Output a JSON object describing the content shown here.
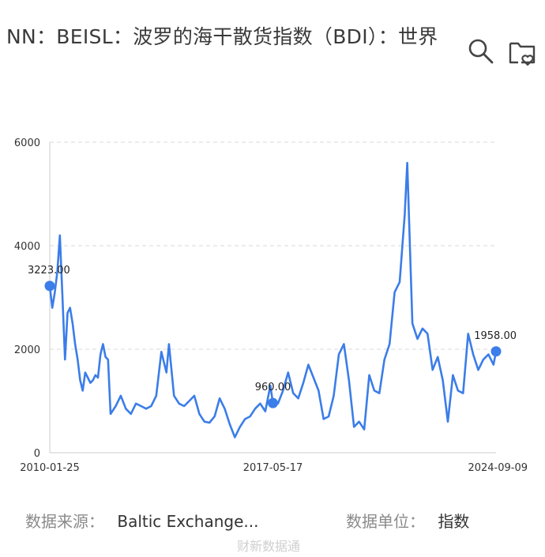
{
  "header": {
    "title": "NN：BEISL：波罗的海干散货指数（BDI）：世界"
  },
  "icons": {
    "search": "search-icon",
    "favorite": "folder-heart-icon"
  },
  "colors": {
    "series": "#3b7de9",
    "grid": "#d8d8d8",
    "axis": "#cccccc"
  },
  "chart_data": {
    "type": "line",
    "title": "",
    "xlabel": "",
    "ylabel": "",
    "ylim": [
      0,
      6000
    ],
    "yticks": [
      "0",
      "2000",
      "4000",
      "6000"
    ],
    "xticks": [
      "2010-01-25",
      "2017-05-17",
      "2024-09-09"
    ],
    "grid": true,
    "series": [
      {
        "x": [
          "2010-01",
          "2010-02",
          "2010-03",
          "2010-04",
          "2010-05",
          "2010-06",
          "2010-07",
          "2010-08",
          "2010-09",
          "2010-10",
          "2010-11",
          "2010-12",
          "2011-01",
          "2011-02",
          "2011-03",
          "2011-04",
          "2011-05",
          "2011-06",
          "2011-07",
          "2011-08",
          "2011-09",
          "2011-10",
          "2011-11",
          "2011-12",
          "2012-01",
          "2012-03",
          "2012-05",
          "2012-07",
          "2012-09",
          "2012-11",
          "2013-01",
          "2013-03",
          "2013-05",
          "2013-07",
          "2013-09",
          "2013-11",
          "2013-12",
          "2014-02",
          "2014-04",
          "2014-06",
          "2014-08",
          "2014-10",
          "2014-12",
          "2015-02",
          "2015-04",
          "2015-06",
          "2015-08",
          "2015-10",
          "2015-12",
          "2016-02",
          "2016-04",
          "2016-06",
          "2016-08",
          "2016-10",
          "2016-12",
          "2017-02",
          "2017-04",
          "2017-05",
          "2017-07",
          "2017-09",
          "2017-11",
          "2018-01",
          "2018-03",
          "2018-05",
          "2018-07",
          "2018-09",
          "2018-11",
          "2019-01",
          "2019-03",
          "2019-05",
          "2019-07",
          "2019-09",
          "2019-11",
          "2020-01",
          "2020-03",
          "2020-05",
          "2020-07",
          "2020-09",
          "2020-11",
          "2021-01",
          "2021-03",
          "2021-05",
          "2021-07",
          "2021-09",
          "2021-10",
          "2021-12",
          "2022-02",
          "2022-04",
          "2022-06",
          "2022-08",
          "2022-10",
          "2022-12",
          "2023-02",
          "2023-04",
          "2023-06",
          "2023-08",
          "2023-10",
          "2023-12",
          "2024-02",
          "2024-04",
          "2024-06",
          "2024-08",
          "2024-09"
        ],
        "values": [
          3223,
          2800,
          3100,
          3500,
          4200,
          3000,
          1800,
          2700,
          2800,
          2500,
          2100,
          1800,
          1400,
          1200,
          1550,
          1450,
          1350,
          1400,
          1500,
          1450,
          1900,
          2100,
          1850,
          1800,
          750,
          900,
          1100,
          850,
          750,
          950,
          900,
          850,
          900,
          1100,
          1950,
          1550,
          2100,
          1100,
          950,
          900,
          1000,
          1100,
          750,
          600,
          580,
          700,
          1050,
          850,
          550,
          300,
          500,
          650,
          700,
          850,
          950,
          800,
          1300,
          960,
          950,
          1200,
          1550,
          1150,
          1050,
          1350,
          1700,
          1450,
          1200,
          650,
          700,
          1100,
          1900,
          2100,
          1400,
          500,
          600,
          450,
          1500,
          1200,
          1150,
          1800,
          2100,
          3100,
          3300,
          4600,
          5600,
          2500,
          2200,
          2400,
          2300,
          1600,
          1850,
          1400,
          600,
          1500,
          1200,
          1150,
          2300,
          1900,
          1600,
          1800,
          1900,
          1700,
          1958
        ],
        "point_labels": [
          {
            "x": "2010-01",
            "label": "3223.00"
          },
          {
            "x": "2017-05",
            "label": "960.00"
          },
          {
            "x": "2024-09",
            "label": "1958.00"
          }
        ]
      }
    ]
  },
  "footer": {
    "source_label": "数据来源：",
    "source_value": "Baltic Exchange...",
    "unit_label": "数据单位：",
    "unit_value": "指数"
  },
  "watermark": "财新数据通"
}
